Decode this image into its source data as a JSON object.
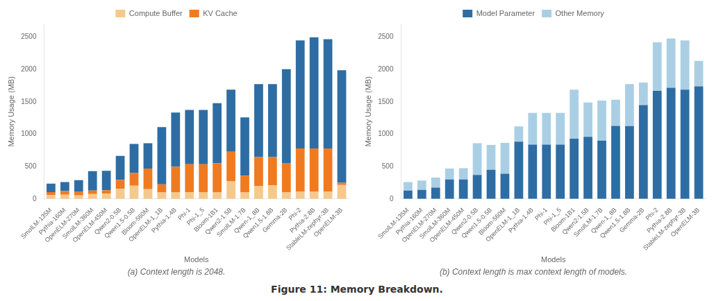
{
  "title": "Figure 11: Memory Breakdown.",
  "chart_data": [
    {
      "type": "bar",
      "title": "(a) Context length is 2048.",
      "xlabel": "Models",
      "ylabel": "Memory Usage (MB)",
      "categories": [
        "SmolLM-135M",
        "Pythia-160M",
        "OpenELM-270M",
        "SmolLM-360M",
        "OpenELM-450M",
        "Qwen2-0.5B",
        "Qwen1.5-0.5B",
        "Bloom-560M",
        "OpenELM-1_1B",
        "Pythia-1.4B",
        "Phi-1",
        "Phi-1_5",
        "Bloom-1B1",
        "Qwen2-1.5B",
        "SmolLM-1.7B",
        "Qwen-1_8B",
        "Qwen1.5-1.8B",
        "Gemma-2B",
        "Phi-2",
        "Pythia-2.8B",
        "StableLM-zephyr-3B",
        "OpenELM-3B"
      ],
      "series": [
        {
          "name": "Compute Buffer",
          "color": "#F5C98B",
          "values": [
            60,
            65,
            55,
            75,
            80,
            155,
            205,
            150,
            100,
            105,
            105,
            105,
            100,
            270,
            100,
            195,
            210,
            100,
            110,
            110,
            110,
            215
          ]
        },
        {
          "name": "KV Cache",
          "color": "#F07A20",
          "values": [
            45,
            55,
            60,
            55,
            55,
            140,
            195,
            320,
            125,
            390,
            430,
            430,
            450,
            460,
            260,
            450,
            440,
            455,
            670,
            670,
            670,
            35
          ]
        },
        {
          "color": "#2E6DA4",
          "values": [
            130,
            140,
            175,
            300,
            300,
            370,
            450,
            390,
            885,
            840,
            840,
            840,
            930,
            960,
            900,
            1130,
            1125,
            1450,
            1670,
            1720,
            1690,
            1740
          ]
        }
      ],
      "stacked": true,
      "ylim": [
        0,
        2700
      ],
      "yticks": [
        0,
        500,
        1000,
        1500,
        2000,
        2500
      ],
      "grid": false,
      "legend": "top"
    },
    {
      "type": "bar",
      "title": "(b) Context length is max context length of models.",
      "xlabel": "Models",
      "ylabel": "Memory Usage (MB)",
      "categories": [
        "SmolLM-135M",
        "Pythia-160M",
        "OpenELM-270M",
        "SmolLM-360M",
        "OpenELM-450M",
        "Qwen2-0.5B",
        "Qwen1.5-0.5B",
        "Bloom-560M",
        "OpenELM-1_1B",
        "Pythia-1.4B",
        "Phi-1",
        "Phi-1_5",
        "Bloom-1B1",
        "Qwen2-1.5B",
        "SmolLM-1.7B",
        "Qwen-1_8B",
        "Qwen1.5-1.8B",
        "Gemma-2B",
        "Phi-2",
        "Pythia-2.8B",
        "StableLM-zephyr-3B",
        "OpenELM-3B"
      ],
      "series": [
        {
          "name": "Model Parameter",
          "color": "#2E6DA4",
          "values": [
            130,
            140,
            175,
            300,
            300,
            370,
            450,
            390,
            885,
            840,
            840,
            840,
            930,
            960,
            900,
            1130,
            1125,
            1450,
            1670,
            1720,
            1690,
            1740
          ]
        },
        {
          "name": "Other Memory",
          "color": "#AACFE4",
          "values": [
            130,
            145,
            155,
            170,
            175,
            490,
            385,
            475,
            235,
            490,
            490,
            490,
            760,
            530,
            620,
            405,
            650,
            350,
            750,
            760,
            760,
            395
          ]
        }
      ],
      "stacked": true,
      "ylim": [
        0,
        2700
      ],
      "yticks": [
        0,
        500,
        1000,
        1500,
        2000,
        2500
      ],
      "grid": false,
      "legend": "top"
    }
  ]
}
